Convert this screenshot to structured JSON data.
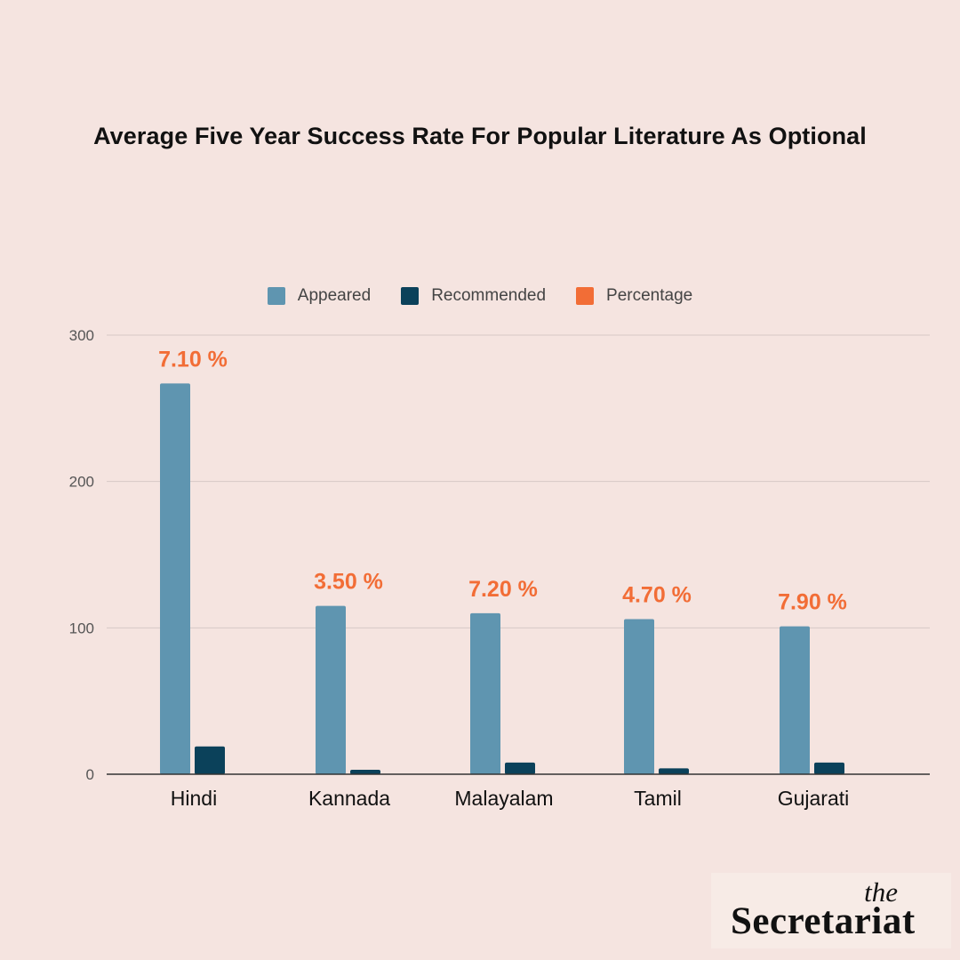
{
  "chart_data": {
    "type": "bar",
    "title": "Average Five Year Success Rate For Popular Literature As Optional",
    "categories": [
      "Hindi",
      "Kannada",
      "Malayalam",
      "Tamil",
      "Gujarati"
    ],
    "series": [
      {
        "name": "Appeared",
        "values": [
          267,
          115,
          110,
          106,
          101
        ],
        "color": "#5f95b0"
      },
      {
        "name": "Recommended",
        "values": [
          19,
          3,
          8,
          4,
          8
        ],
        "color": "#0b415a"
      }
    ],
    "percentage_legend": {
      "name": "Percentage",
      "color": "#f26d36"
    },
    "percentage_labels": [
      "7.10 %",
      "3.50 %",
      "7.20 %",
      "4.70 %",
      "7.90 %"
    ],
    "y_ticks": [
      0,
      100,
      200,
      300
    ],
    "ylim": [
      0,
      300
    ],
    "grid": true,
    "legend_position": "top-center",
    "xlabel": "",
    "ylabel": ""
  },
  "logo": {
    "line1": "the",
    "line2": "Secretariat"
  }
}
